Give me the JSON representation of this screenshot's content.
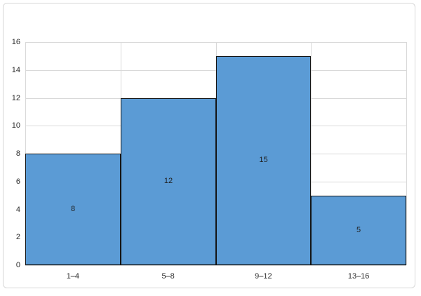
{
  "chart_data": {
    "type": "bar",
    "subtype": "histogram",
    "categories": [
      "1–4",
      "5–8",
      "9–12",
      "13–16"
    ],
    "values": [
      8,
      12,
      15,
      5
    ],
    "data_labels": [
      "8",
      "12",
      "15",
      "5"
    ],
    "yticks": [
      "0",
      "2",
      "4",
      "6",
      "8",
      "10",
      "12",
      "14",
      "16"
    ],
    "ytick_values": [
      0,
      2,
      4,
      6,
      8,
      10,
      12,
      14,
      16
    ],
    "ylim": [
      0,
      16
    ],
    "bar_gap": 0,
    "legend": "none",
    "grid": "horizontal value lines and vertical category-boundary lines",
    "data_label_position": "center"
  },
  "colors": {
    "bar_fill": "#5b9bd5",
    "bar_border": "#141414",
    "gridline": "#d9d9d9",
    "axis_line": "#c0c0c0",
    "tick_text": "#2b2b2b",
    "data_label_text": "#1f1f1f",
    "frame_border": "#d8d8d8",
    "background": "#ffffff"
  }
}
